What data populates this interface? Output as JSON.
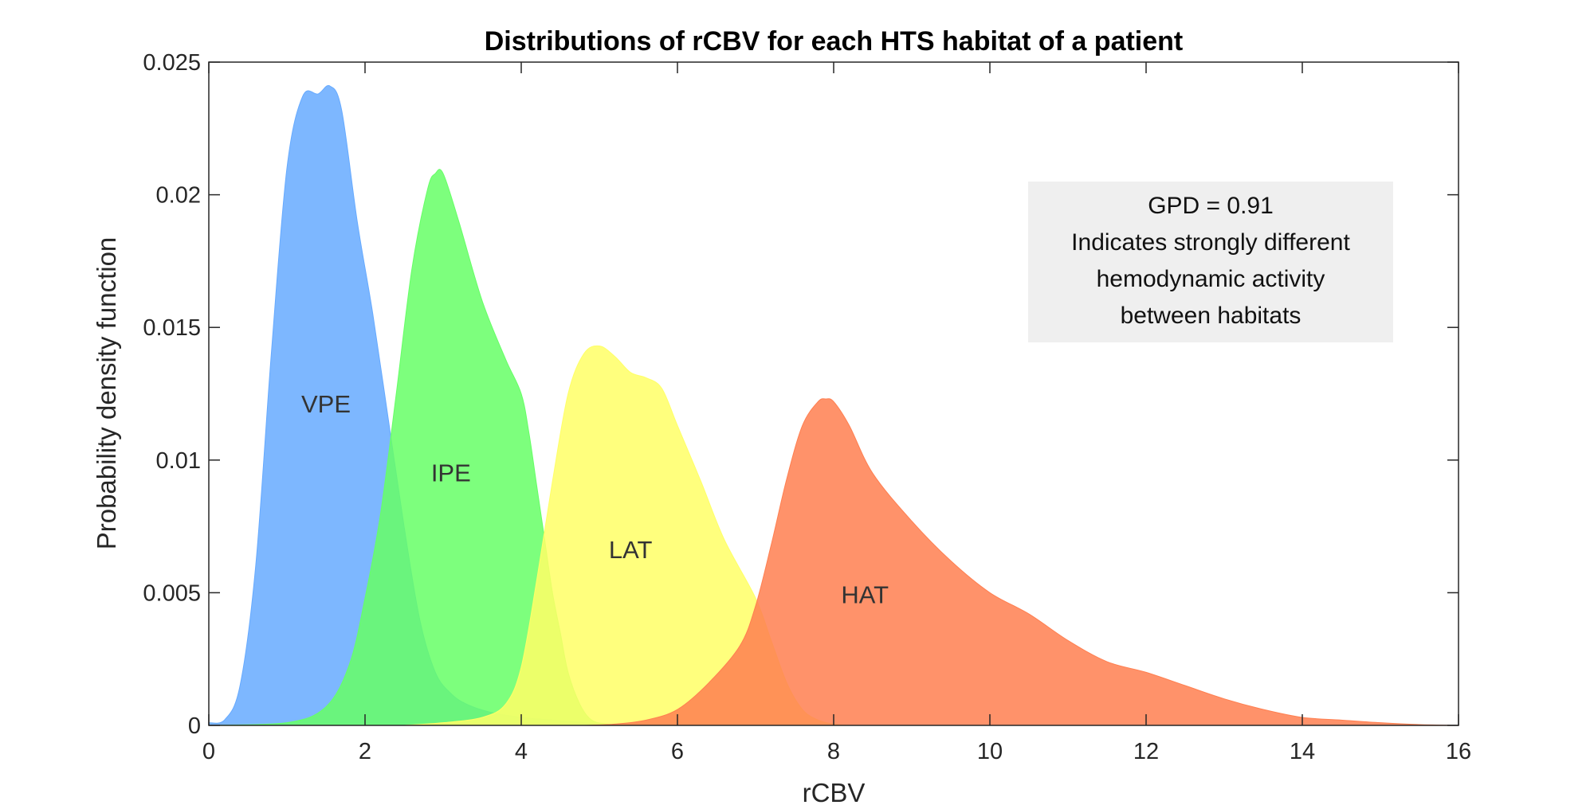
{
  "chart_data": {
    "type": "area",
    "title": "Distributions of rCBV for each HTS habitat of a patient",
    "xlabel": "rCBV",
    "ylabel": "Probability density function",
    "xlim": [
      0,
      16
    ],
    "ylim": [
      0,
      0.025
    ],
    "xticks": [
      0,
      2,
      4,
      6,
      8,
      10,
      12,
      14,
      16
    ],
    "xtick_labels": [
      "0",
      "2",
      "4",
      "6",
      "8",
      "10",
      "12",
      "14",
      "16"
    ],
    "yticks": [
      0,
      0.005,
      0.01,
      0.015,
      0.02,
      0.025
    ],
    "ytick_labels": [
      "0",
      "0.005",
      "0.01",
      "0.015",
      "0.02",
      "0.025"
    ],
    "grid": false,
    "series": [
      {
        "name": "VPE",
        "color": "#66aaff",
        "label_at": [
          1.5,
          0.0118
        ],
        "x": [
          0,
          0.2,
          0.4,
          0.6,
          0.8,
          1.0,
          1.2,
          1.4,
          1.55,
          1.7,
          1.9,
          2.1,
          2.3,
          2.5,
          2.7,
          2.9,
          3.1,
          3.3,
          3.6,
          4.0,
          4.4,
          4.8,
          5.0
        ],
        "y": [
          0.0001,
          0.0002,
          0.0015,
          0.006,
          0.014,
          0.021,
          0.0237,
          0.0238,
          0.0241,
          0.0232,
          0.019,
          0.0155,
          0.0115,
          0.0075,
          0.004,
          0.002,
          0.0012,
          0.0008,
          0.0005,
          0.0003,
          0.0002,
          0.0001,
          0
        ]
      },
      {
        "name": "IPE",
        "color": "#66ff66",
        "label_at": [
          3.1,
          0.0092
        ],
        "x": [
          0,
          1.0,
          1.5,
          1.8,
          2.0,
          2.2,
          2.4,
          2.6,
          2.8,
          2.9,
          3.0,
          3.2,
          3.5,
          3.8,
          4.0,
          4.1,
          4.2,
          4.3,
          4.4,
          4.5,
          4.6,
          4.75,
          4.9,
          5.1,
          5.3
        ],
        "y": [
          0,
          0.0001,
          0.0007,
          0.0023,
          0.0048,
          0.008,
          0.0125,
          0.0172,
          0.0202,
          0.0208,
          0.0208,
          0.019,
          0.016,
          0.0138,
          0.0125,
          0.011,
          0.009,
          0.007,
          0.005,
          0.0035,
          0.002,
          0.0008,
          0.0002,
          5e-05,
          0
        ]
      },
      {
        "name": "LAT",
        "color": "#ffff66",
        "label_at": [
          5.4,
          0.0063
        ],
        "x": [
          2.5,
          3.0,
          3.5,
          3.8,
          4.0,
          4.2,
          4.4,
          4.6,
          4.8,
          5.0,
          5.2,
          5.4,
          5.6,
          5.8,
          6.0,
          6.3,
          6.6,
          7.0,
          7.2,
          7.4,
          7.6,
          7.8,
          8.0,
          8.2
        ],
        "y": [
          0,
          0.0001,
          0.0003,
          0.0008,
          0.0022,
          0.0055,
          0.0092,
          0.0125,
          0.014,
          0.0143,
          0.0139,
          0.0133,
          0.0131,
          0.0127,
          0.0113,
          0.0092,
          0.007,
          0.0048,
          0.0032,
          0.0016,
          0.0006,
          0.0002,
          5e-05,
          0
        ]
      },
      {
        "name": "HAT",
        "color": "#ff7f50",
        "label_at": [
          8.4,
          0.0046
        ],
        "x": [
          4.8,
          5.2,
          5.6,
          6.0,
          6.4,
          6.8,
          7.0,
          7.2,
          7.4,
          7.6,
          7.8,
          7.9,
          8.0,
          8.2,
          8.5,
          9.0,
          9.5,
          10.0,
          10.5,
          11.0,
          11.5,
          12.0,
          12.5,
          13.0,
          13.5,
          14.0,
          14.5,
          15.0,
          15.5,
          16.0
        ],
        "y": [
          0,
          5e-05,
          0.0002,
          0.0006,
          0.0016,
          0.003,
          0.0045,
          0.0068,
          0.0093,
          0.0113,
          0.0122,
          0.0123,
          0.0122,
          0.0113,
          0.0095,
          0.0077,
          0.0062,
          0.005,
          0.0042,
          0.0032,
          0.0024,
          0.002,
          0.0015,
          0.001,
          0.0006,
          0.0003,
          0.0002,
          0.0001,
          3e-05,
          0
        ]
      }
    ],
    "annotation": {
      "lines": [
        "GPD = 0.91",
        "Indicates strongly different",
        "hemodynamic activity",
        "between habitats"
      ],
      "background": "#efefef"
    }
  }
}
